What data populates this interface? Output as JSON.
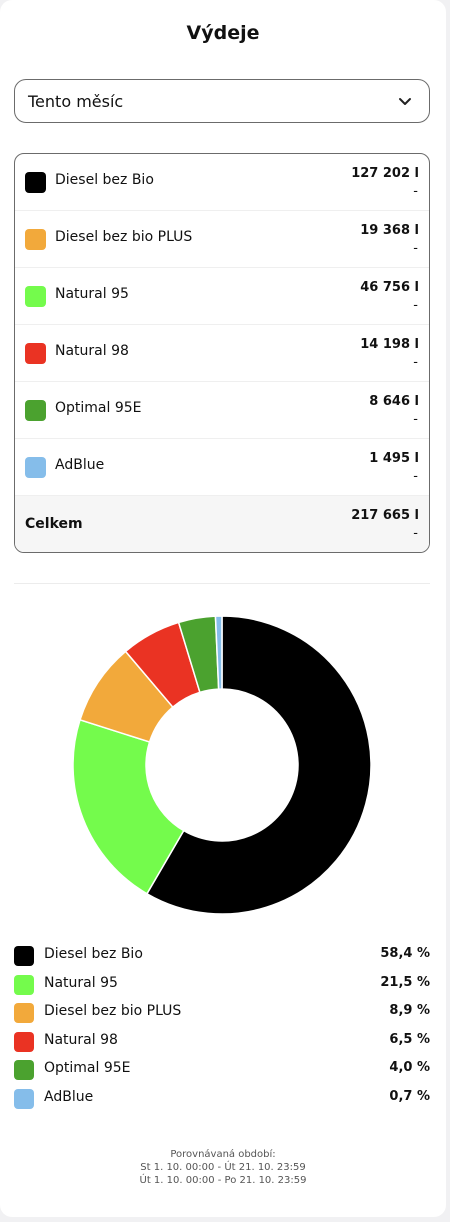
{
  "header": {
    "title": "Výdeje"
  },
  "period_select": {
    "value": "Tento měsíc",
    "icon": "chevron-down-icon"
  },
  "summary_table": {
    "rows": [
      {
        "name": "Diesel bez Bio",
        "volume": "127 202 l",
        "change": "-",
        "color": "#000000"
      },
      {
        "name": "Diesel bez bio PLUS",
        "volume": "19 368 l",
        "change": "-",
        "color": "#F2A93B"
      },
      {
        "name": "Natural 95",
        "volume": "46 756 l",
        "change": "-",
        "color": "#74FB4C"
      },
      {
        "name": "Natural 98",
        "volume": "14 198 l",
        "change": "-",
        "color": "#EA3323"
      },
      {
        "name": "Optimal 95E",
        "volume": "8 646 l",
        "change": "-",
        "color": "#4BA22F"
      },
      {
        "name": "AdBlue",
        "volume": "1 495 l",
        "change": "-",
        "color": "#85BDEA"
      }
    ],
    "total": {
      "name": "Celkem",
      "volume": "217 665 l",
      "change": "-"
    }
  },
  "chart_data": {
    "type": "pie",
    "donut": true,
    "categories": [
      "Diesel bez Bio",
      "Natural 95",
      "Diesel bez bio PLUS",
      "Natural 98",
      "Optimal 95E",
      "AdBlue"
    ],
    "values": [
      58.4,
      21.5,
      8.9,
      6.5,
      4.0,
      0.7
    ],
    "labels": [
      "58,4 %",
      "21,5 %",
      "8,9 %",
      "6,5 %",
      "4,0 %",
      "0,7 %"
    ],
    "colors": [
      "#000000",
      "#74FB4C",
      "#F2A93B",
      "#EA3323",
      "#4BA22F",
      "#85BDEA"
    ]
  },
  "footer": {
    "label": "Porovnávaná období:",
    "period_1": "St 1. 10. 00:00 - Út 21. 10. 23:59",
    "period_2": "Út 1. 10. 00:00 - Po 21. 10. 23:59"
  }
}
